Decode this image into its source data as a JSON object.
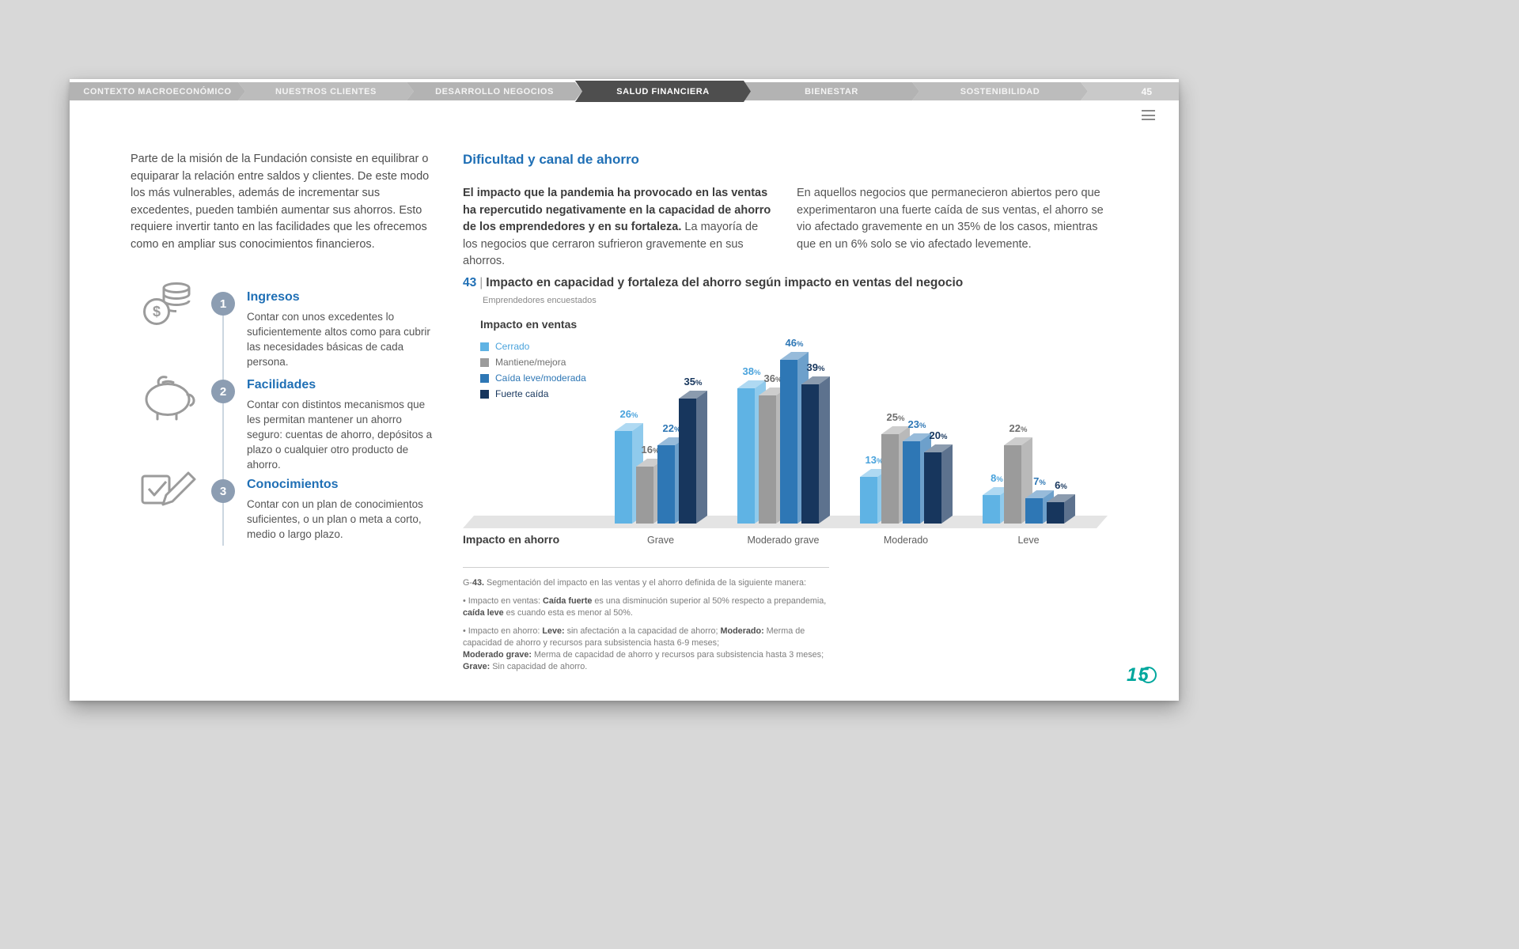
{
  "colors": {
    "page_bg": "#d8d8d8",
    "card_bg": "#ffffff",
    "accent_blue": "#1f6fb5",
    "nav_active": "#4e4e4e",
    "nav_inactive": "#b3b3b3",
    "nav_filler": "#c9c9c9",
    "step_badge": "#8c9db2",
    "chart_floor": "#e4e4e4",
    "logo_teal": "#00a79d"
  },
  "nav": {
    "tabs": [
      "CONTEXTO MACROECONÓMICO",
      "NUESTROS CLIENTES",
      "DESARROLLO NEGOCIOS",
      "SALUD FINANCIERA",
      "BIENESTAR",
      "SOSTENIBILIDAD"
    ],
    "active_index": 3,
    "page_number": "45"
  },
  "left_column": {
    "intro": "Parte de la misión de la Fundación consiste en equilibrar o equiparar la relación entre saldos y clientes. De este modo los más vulnerables, además de incrementar sus excedentes, pueden también aumentar sus ahorros. Esto requiere invertir tanto en las facilidades que les ofrecemos como en ampliar sus conocimientos financieros.",
    "items": [
      {
        "number": "1",
        "icon": "coins-icon",
        "title": "Ingresos",
        "text": "Contar con unos excedentes lo suficientemente altos como para cubrir las necesidades básicas de cada persona."
      },
      {
        "number": "2",
        "icon": "piggy-bank-icon",
        "title": "Facilidades",
        "text": "Contar con distintos mecanismos que les permitan mantener un ahorro seguro: cuentas de ahorro, depósitos a plazo o cualquier otro producto de ahorro."
      },
      {
        "number": "3",
        "icon": "checklist-pencil-icon",
        "title": "Conocimientos",
        "text": "Contar con un plan de conocimientos suficientes, o un plan o meta a corto, medio o largo plazo."
      }
    ]
  },
  "content": {
    "section_title": "Dificultad y canal de ahorro",
    "col1": {
      "bold": "El impacto que la pandemia ha provocado en las ventas ha repercutido negativamente en la capacidad de ahorro de los emprendedores y en su fortaleza.",
      "regular": " La mayoría de los negocios que cerraron sufrieron gravemente en sus ahorros."
    },
    "col2": "En aquellos negocios que permanecieron abiertos pero que experimentaron una fuerte caída de sus ventas, el ahorro se vio afectado gravemente en un 35% de los casos, mientras que en un 6% solo se vio afectado levemente."
  },
  "chart": {
    "figure_number": "43",
    "separator": "|",
    "title": "Impacto en capacidad y fortaleza del ahorro según impacto en ventas del negocio",
    "subtitle": "Emprendedores encuestados",
    "legend_title": "Impacto en ventas",
    "x_axis_label": "Impacto en ahorro"
  },
  "chart_data": {
    "type": "bar",
    "title": "Impacto en capacidad y fortaleza del ahorro según impacto en ventas del negocio",
    "subtitle": "Emprendedores encuestados",
    "categories": [
      "Grave",
      "Moderado grave",
      "Moderado",
      "Leve"
    ],
    "series": [
      {
        "name": "Cerrado",
        "color": "#5fb3e4",
        "label_color": "#4aa3dc",
        "values": [
          26,
          38,
          13,
          8
        ]
      },
      {
        "name": "Mantiene/mejora",
        "color": "#9b9b9b",
        "label_color": "#6f6f6f",
        "values": [
          16,
          36,
          25,
          22
        ]
      },
      {
        "name": "Caída leve/moderada",
        "color": "#2e77b5",
        "label_color": "#2e77b5",
        "values": [
          22,
          46,
          23,
          7
        ]
      },
      {
        "name": "Fuerte caída",
        "color": "#17365d",
        "label_color": "#17365d",
        "values": [
          35,
          39,
          20,
          6
        ]
      }
    ],
    "xlabel": "Impacto en ahorro",
    "ylabel": "",
    "ylim": [
      0,
      50
    ],
    "unit": "%",
    "grid": false,
    "legend_position": "left",
    "style": "3d-bars"
  },
  "footnote": {
    "lines": [
      {
        "gap": true,
        "segments": [
          {
            "t": "G-"
          },
          {
            "t": "43.",
            "b": true
          },
          {
            "t": " Segmentación del impacto en las ventas y el ahorro definida de la siguiente manera:"
          }
        ]
      },
      {
        "gap": true,
        "segments": [
          {
            "t": "• Impacto en ventas: "
          },
          {
            "t": "Caída fuerte",
            "b": true
          },
          {
            "t": " es una disminución superior al 50% respecto a prepandemia, "
          },
          {
            "t": "caída leve",
            "b": true
          },
          {
            "t": " es cuando esta es menor al 50%."
          }
        ]
      },
      {
        "segments": [
          {
            "t": "• Impacto en ahorro: "
          },
          {
            "t": "Leve:",
            "b": true
          },
          {
            "t": " sin afectación a la capacidad de ahorro; "
          },
          {
            "t": "Moderado:",
            "b": true
          },
          {
            "t": " Merma de capacidad de ahorro y recursos para subsistencia hasta 6-9 meses;"
          }
        ]
      },
      {
        "segments": [
          {
            "t": "Moderado grave:",
            "b": true
          },
          {
            "t": " Merma de capacidad de ahorro y recursos para subsistencia hasta 3 meses;"
          }
        ]
      },
      {
        "segments": [
          {
            "t": "Grave:",
            "b": true
          },
          {
            "t": " Sin capacidad de ahorro."
          }
        ]
      }
    ]
  },
  "logo": {
    "text": "15"
  }
}
